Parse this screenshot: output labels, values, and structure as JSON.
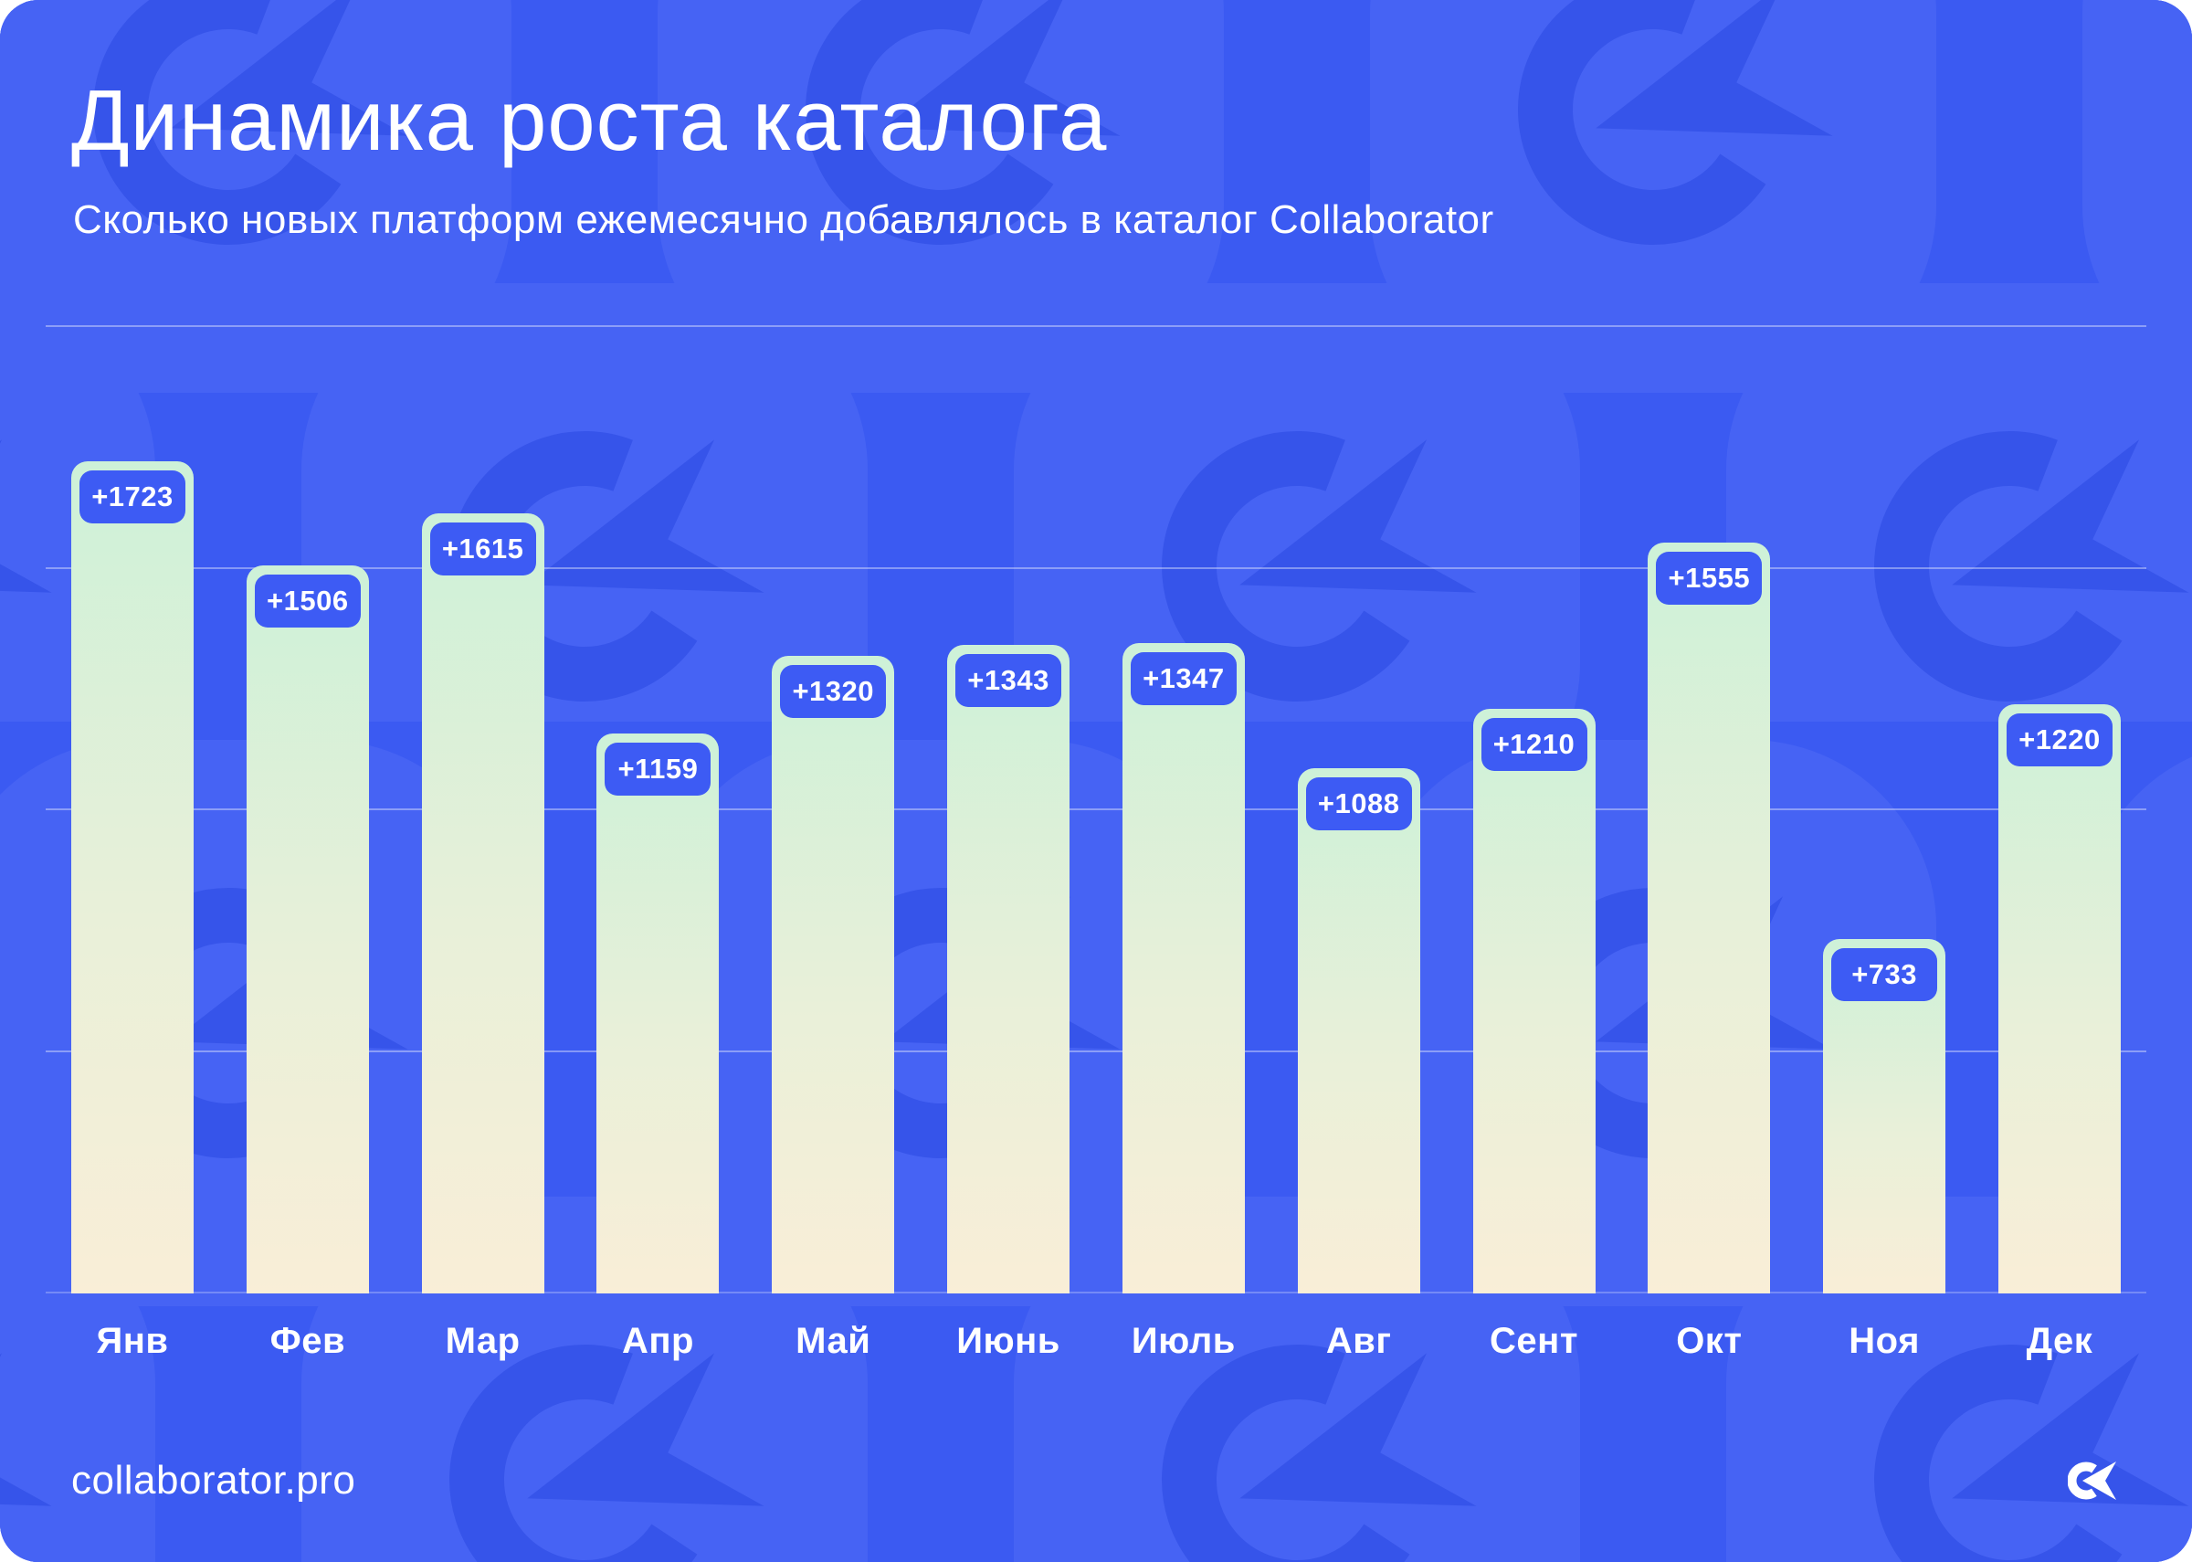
{
  "header": {
    "title": "Динамика роста каталога",
    "subtitle": "Сколько новых платформ ежемесячно добавлялось в каталог Collaborator"
  },
  "chart_data": {
    "type": "bar",
    "title": "Динамика роста каталога",
    "subtitle": "Сколько новых платформ ежемесячно добавлялось в каталог Collaborator",
    "categories": [
      "Янв",
      "Фев",
      "Мар",
      "Апр",
      "Май",
      "Июнь",
      "Июль",
      "Авг",
      "Сент",
      "Окт",
      "Ноя",
      "Дек"
    ],
    "values": [
      1723,
      1506,
      1615,
      1159,
      1320,
      1343,
      1347,
      1088,
      1210,
      1555,
      733,
      1220
    ],
    "labels": [
      "+1723",
      "+1506",
      "+1615",
      "+1159",
      "+1320",
      "+1343",
      "+1347",
      "+1088",
      "+1210",
      "+1555",
      "+733",
      "+1220"
    ],
    "xlabel": "",
    "ylabel": "",
    "ylim": [
      0,
      2110
    ],
    "gridline_values": [
      500,
      1000,
      1500,
      2000
    ],
    "grid": "horizontal, unlabeled",
    "legend": "none"
  },
  "footer": {
    "site": "collaborator.pro",
    "logo": "collaborator-logo"
  },
  "colors": {
    "background": "#3b5af2",
    "pattern_tile": "#4663f4",
    "pattern_glyph": "#3654ea",
    "bar_top": "#cdf1d8",
    "bar_bottom": "#f9eed7",
    "badge": "#3d5bf4",
    "text": "#ffffff",
    "gridline": "rgba(255,255,255,0.38)"
  }
}
